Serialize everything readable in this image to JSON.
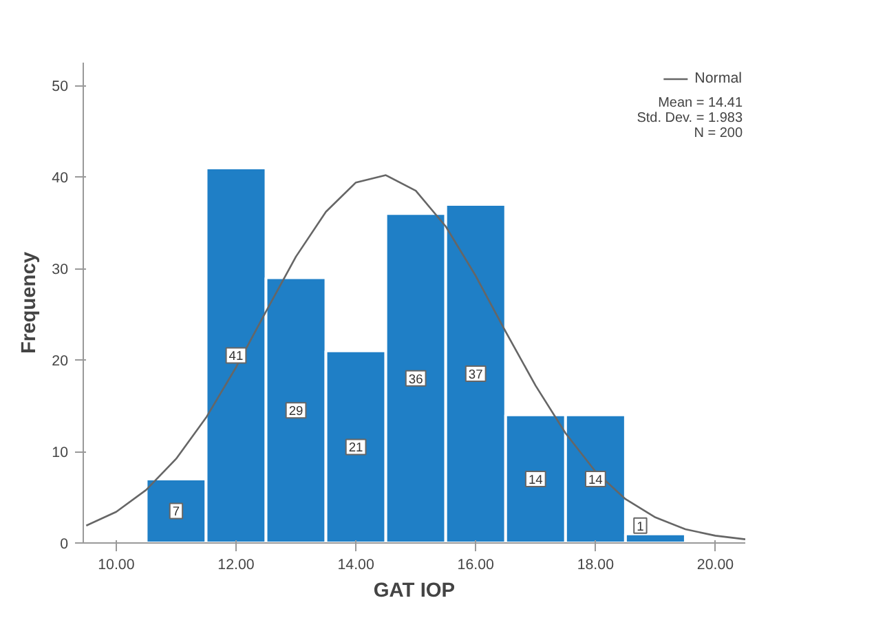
{
  "chart_data": {
    "type": "histogram",
    "xlabel": "GAT IOP",
    "ylabel": "Frequency",
    "bins": [
      10.5,
      11.5,
      12.5,
      13.5,
      14.5,
      15.5,
      16.5,
      17.5,
      18.5,
      19.5
    ],
    "values": [
      7,
      41,
      29,
      21,
      36,
      37,
      14,
      14,
      1
    ],
    "color": "#1f7fc6",
    "value_labels": [
      "7",
      "41",
      "29",
      "21",
      "36",
      "37",
      "14",
      "14",
      "1"
    ],
    "series": [
      {
        "name": "Normal",
        "type": "line",
        "color": "#666666",
        "x": [
          9.5,
          10,
          10.5,
          11,
          11.5,
          12,
          12.5,
          13,
          13.5,
          14,
          14.5,
          15,
          15.5,
          16,
          16.5,
          17,
          17.5,
          18,
          18.5,
          19,
          19.5,
          20,
          20.5
        ],
        "values": [
          1.9,
          3.4,
          5.8,
          9.2,
          13.7,
          19.2,
          25.3,
          31.3,
          36.2,
          39.4,
          40.2,
          38.5,
          34.6,
          29.2,
          23.1,
          17.2,
          12.0,
          7.8,
          4.8,
          2.8,
          1.5,
          0.8,
          0.4
        ]
      }
    ],
    "annotations": [
      "Mean = 14.41",
      "Std. Dev. = 1.983",
      "N = 200"
    ],
    "xlim": [
      9.45,
      20.5
    ],
    "ylim": [
      0,
      52.5
    ],
    "xticks": [
      {
        "value": 10,
        "label": "10.00"
      },
      {
        "value": 12,
        "label": "12.00"
      },
      {
        "value": 14,
        "label": "14.00"
      },
      {
        "value": 16,
        "label": "16.00"
      },
      {
        "value": 18,
        "label": "18.00"
      },
      {
        "value": 20,
        "label": "20.00"
      }
    ],
    "yticks": [
      0,
      10,
      20,
      30,
      40,
      50
    ],
    "grid": false,
    "legend": "top right"
  }
}
